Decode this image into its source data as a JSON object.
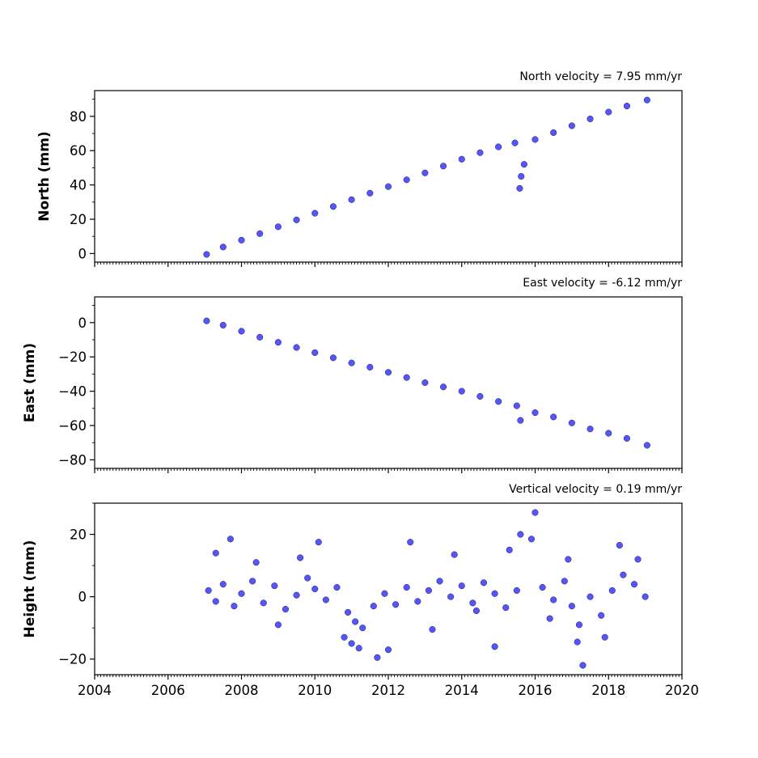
{
  "chart_data": {
    "type": "scatter",
    "x_axis": {
      "ticks": [
        2004,
        2006,
        2008,
        2010,
        2012,
        2014,
        2016,
        2018,
        2020
      ],
      "tick_labels": [
        "2004",
        "2006",
        "2008",
        "2010",
        "2012",
        "2014",
        "2016",
        "2018",
        "2020"
      ],
      "xlim": [
        2004,
        2020
      ]
    },
    "panels": [
      {
        "title": "North velocity = 7.95 mm/yr",
        "ylabel": "North (mm)",
        "ylim": [
          -5,
          95
        ],
        "yticks": [
          0,
          20,
          40,
          60,
          80
        ],
        "ytick_labels": [
          "0",
          "20",
          "40",
          "60",
          "80"
        ],
        "series": {
          "x": [
            2007.05,
            2007.5,
            2008.0,
            2008.5,
            2009.0,
            2009.5,
            2010.0,
            2010.5,
            2011.0,
            2011.5,
            2012.0,
            2012.5,
            2013.0,
            2013.5,
            2014.0,
            2014.5,
            2015.0,
            2015.45,
            2015.58,
            2015.62,
            2015.7,
            2016.0,
            2016.5,
            2017.0,
            2017.5,
            2018.0,
            2018.5,
            2019.05
          ],
          "y": [
            -0.5,
            3.8,
            7.8,
            11.6,
            15.6,
            19.6,
            23.5,
            27.4,
            31.4,
            35.2,
            39.0,
            43.0,
            47.0,
            51.0,
            55.0,
            58.8,
            62.2,
            64.5,
            38.0,
            45.0,
            52.0,
            66.5,
            70.5,
            74.5,
            78.5,
            82.5,
            86.0,
            89.5
          ]
        }
      },
      {
        "title": "East velocity = -6.12 mm/yr",
        "ylabel": "East (mm)",
        "ylim": [
          -85,
          15
        ],
        "yticks": [
          0,
          -20,
          -40,
          -60,
          -80
        ],
        "ytick_labels": [
          "0",
          "−20",
          "−40",
          "−60",
          "−80"
        ],
        "series": {
          "x": [
            2007.05,
            2007.5,
            2008.0,
            2008.5,
            2009.0,
            2009.5,
            2010.0,
            2010.5,
            2011.0,
            2011.5,
            2012.0,
            2012.5,
            2013.0,
            2013.5,
            2014.0,
            2014.5,
            2015.0,
            2015.5,
            2015.6,
            2016.0,
            2016.5,
            2017.0,
            2017.5,
            2018.0,
            2018.5,
            2019.05
          ],
          "y": [
            1.0,
            -1.5,
            -5.0,
            -8.5,
            -11.5,
            -14.5,
            -17.5,
            -20.5,
            -23.5,
            -26.0,
            -29.0,
            -32.0,
            -35.0,
            -37.5,
            -40.0,
            -43.0,
            -46.0,
            -48.5,
            -57.0,
            -52.5,
            -55.0,
            -58.5,
            -62.0,
            -64.5,
            -67.5,
            -71.5
          ]
        }
      },
      {
        "title": "Vertical velocity = 0.19 mm/yr",
        "ylabel": "Height (mm)",
        "ylim": [
          -25,
          30
        ],
        "yticks": [
          20,
          0,
          -20
        ],
        "ytick_labels": [
          "20",
          "0",
          "−20"
        ],
        "series": {
          "x": [
            2007.1,
            2007.3,
            2007.5,
            2007.8,
            2008.0,
            2008.3,
            2008.6,
            2008.9,
            2009.2,
            2009.5,
            2009.8,
            2010.0,
            2010.3,
            2010.6,
            2010.9,
            2011.1,
            2011.3,
            2011.6,
            2011.9,
            2012.2,
            2012.5,
            2012.8,
            2013.1,
            2013.4,
            2013.7,
            2014.0,
            2014.3,
            2014.6,
            2014.9,
            2015.2,
            2015.5,
            2015.9,
            2016.2,
            2016.5,
            2016.8,
            2017.0,
            2017.2,
            2017.5,
            2017.8,
            2018.1,
            2018.4,
            2018.7,
            2019.0,
            2007.3,
            2007.7,
            2008.4,
            2009.0,
            2009.6,
            2010.1,
            2010.8,
            2011.0,
            2011.2,
            2011.7,
            2012.0,
            2012.6,
            2013.2,
            2013.8,
            2014.4,
            2014.9,
            2015.3,
            2015.6,
            2016.0,
            2016.4,
            2016.9,
            2017.15,
            2017.3,
            2017.9,
            2018.3,
            2018.8
          ],
          "y": [
            2.0,
            -1.5,
            4.0,
            -3.0,
            1.0,
            5.0,
            -2.0,
            3.5,
            -4.0,
            0.5,
            6.0,
            2.5,
            -1.0,
            3.0,
            -5.0,
            -8.0,
            -10.0,
            -3.0,
            1.0,
            -2.5,
            3.0,
            -1.5,
            2.0,
            5.0,
            0.0,
            3.5,
            -2.0,
            4.5,
            1.0,
            -3.5,
            2.0,
            18.5,
            3.0,
            -1.0,
            5.0,
            -3.0,
            -9.0,
            0.0,
            -6.0,
            2.0,
            7.0,
            4.0,
            0.0,
            14.0,
            18.5,
            11.0,
            -9.0,
            12.5,
            17.5,
            -13.0,
            -15.0,
            -16.5,
            -19.5,
            -17.0,
            17.5,
            -10.5,
            13.5,
            -4.5,
            -16.0,
            15.0,
            20.0,
            27.0,
            -7.0,
            12.0,
            -14.5,
            -22.0,
            -13.0,
            16.5,
            12.0
          ]
        }
      }
    ]
  }
}
